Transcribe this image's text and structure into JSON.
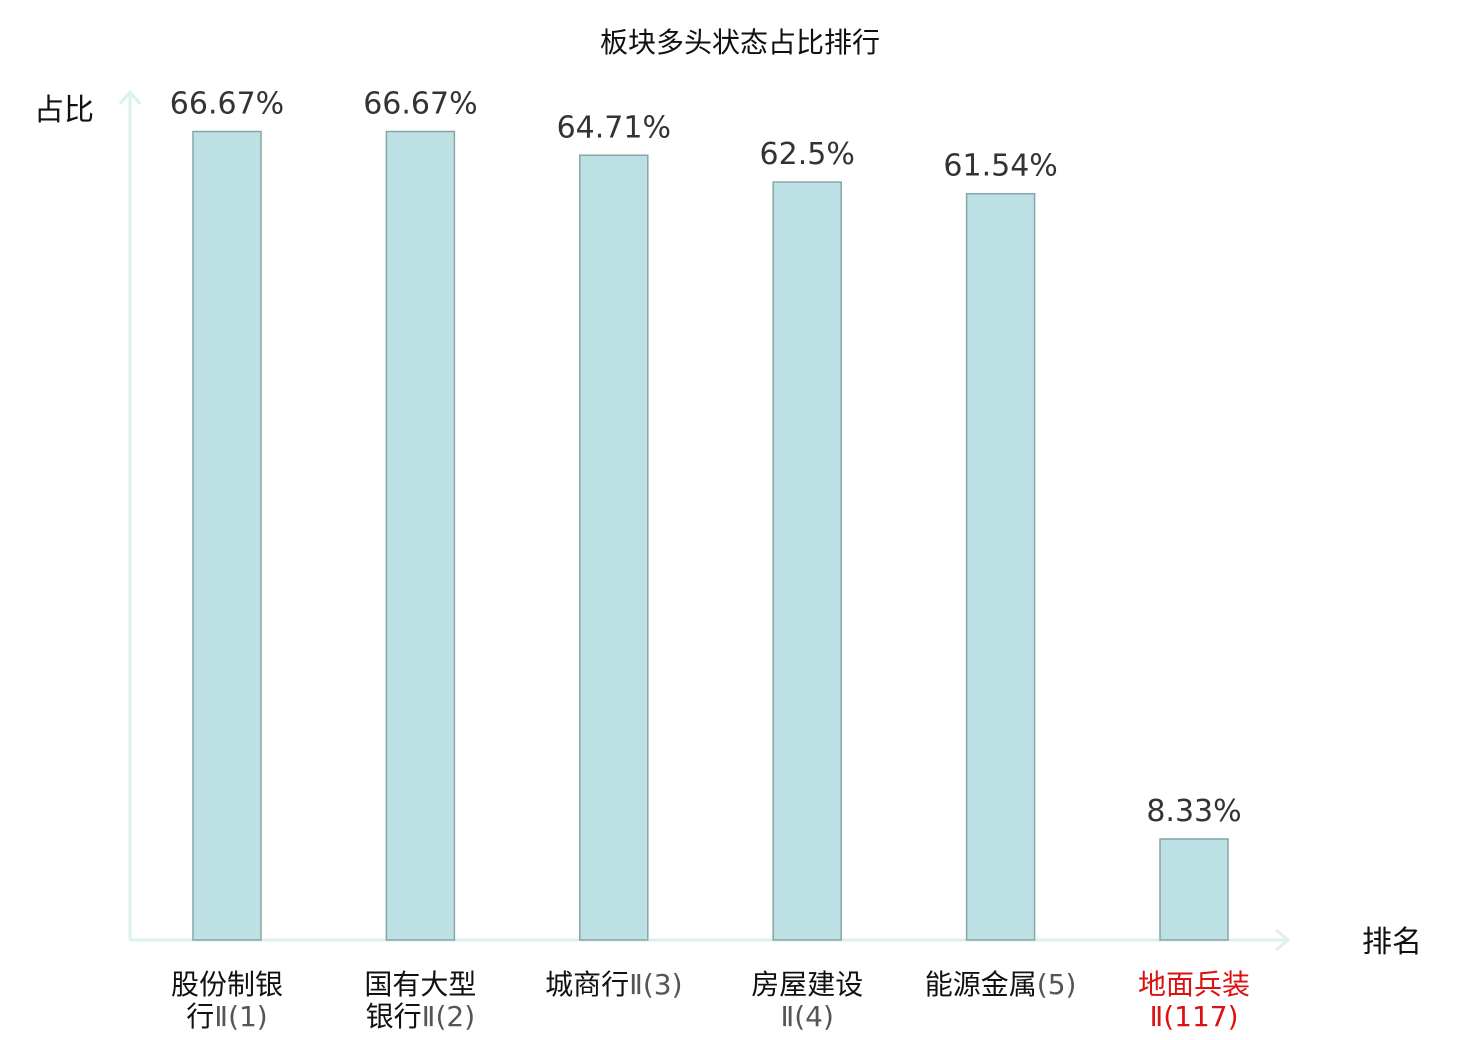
{
  "chart_data": {
    "type": "bar",
    "title": "板块多头状态占比排行",
    "ylabel": "占比",
    "xlabel": "排名",
    "ylim": [
      0,
      70
    ],
    "grid": false,
    "categories": [
      {
        "lines": [
          "股份制银",
          "行Ⅱ(1)"
        ],
        "highlight": false
      },
      {
        "lines": [
          "国有大型",
          "银行Ⅱ(2)"
        ],
        "highlight": false
      },
      {
        "lines": [
          "城商行Ⅱ(3)"
        ],
        "highlight": false
      },
      {
        "lines": [
          "房屋建设",
          "Ⅱ(4)"
        ],
        "highlight": false
      },
      {
        "lines": [
          "能源金属(5)"
        ],
        "highlight": false
      },
      {
        "lines": [
          "地面兵装",
          "Ⅱ(117)"
        ],
        "highlight": true
      }
    ],
    "values": [
      66.67,
      66.67,
      64.71,
      62.5,
      61.54,
      8.33
    ],
    "value_labels": [
      "66.67%",
      "66.67%",
      "64.71%",
      "62.5%",
      "61.54%",
      "8.33%"
    ],
    "colors": {
      "bar_fill": "#bce0e3",
      "bar_stroke": "#86a5a8",
      "axis": "#dcf0ee",
      "highlight_text": "#dd1111"
    }
  }
}
